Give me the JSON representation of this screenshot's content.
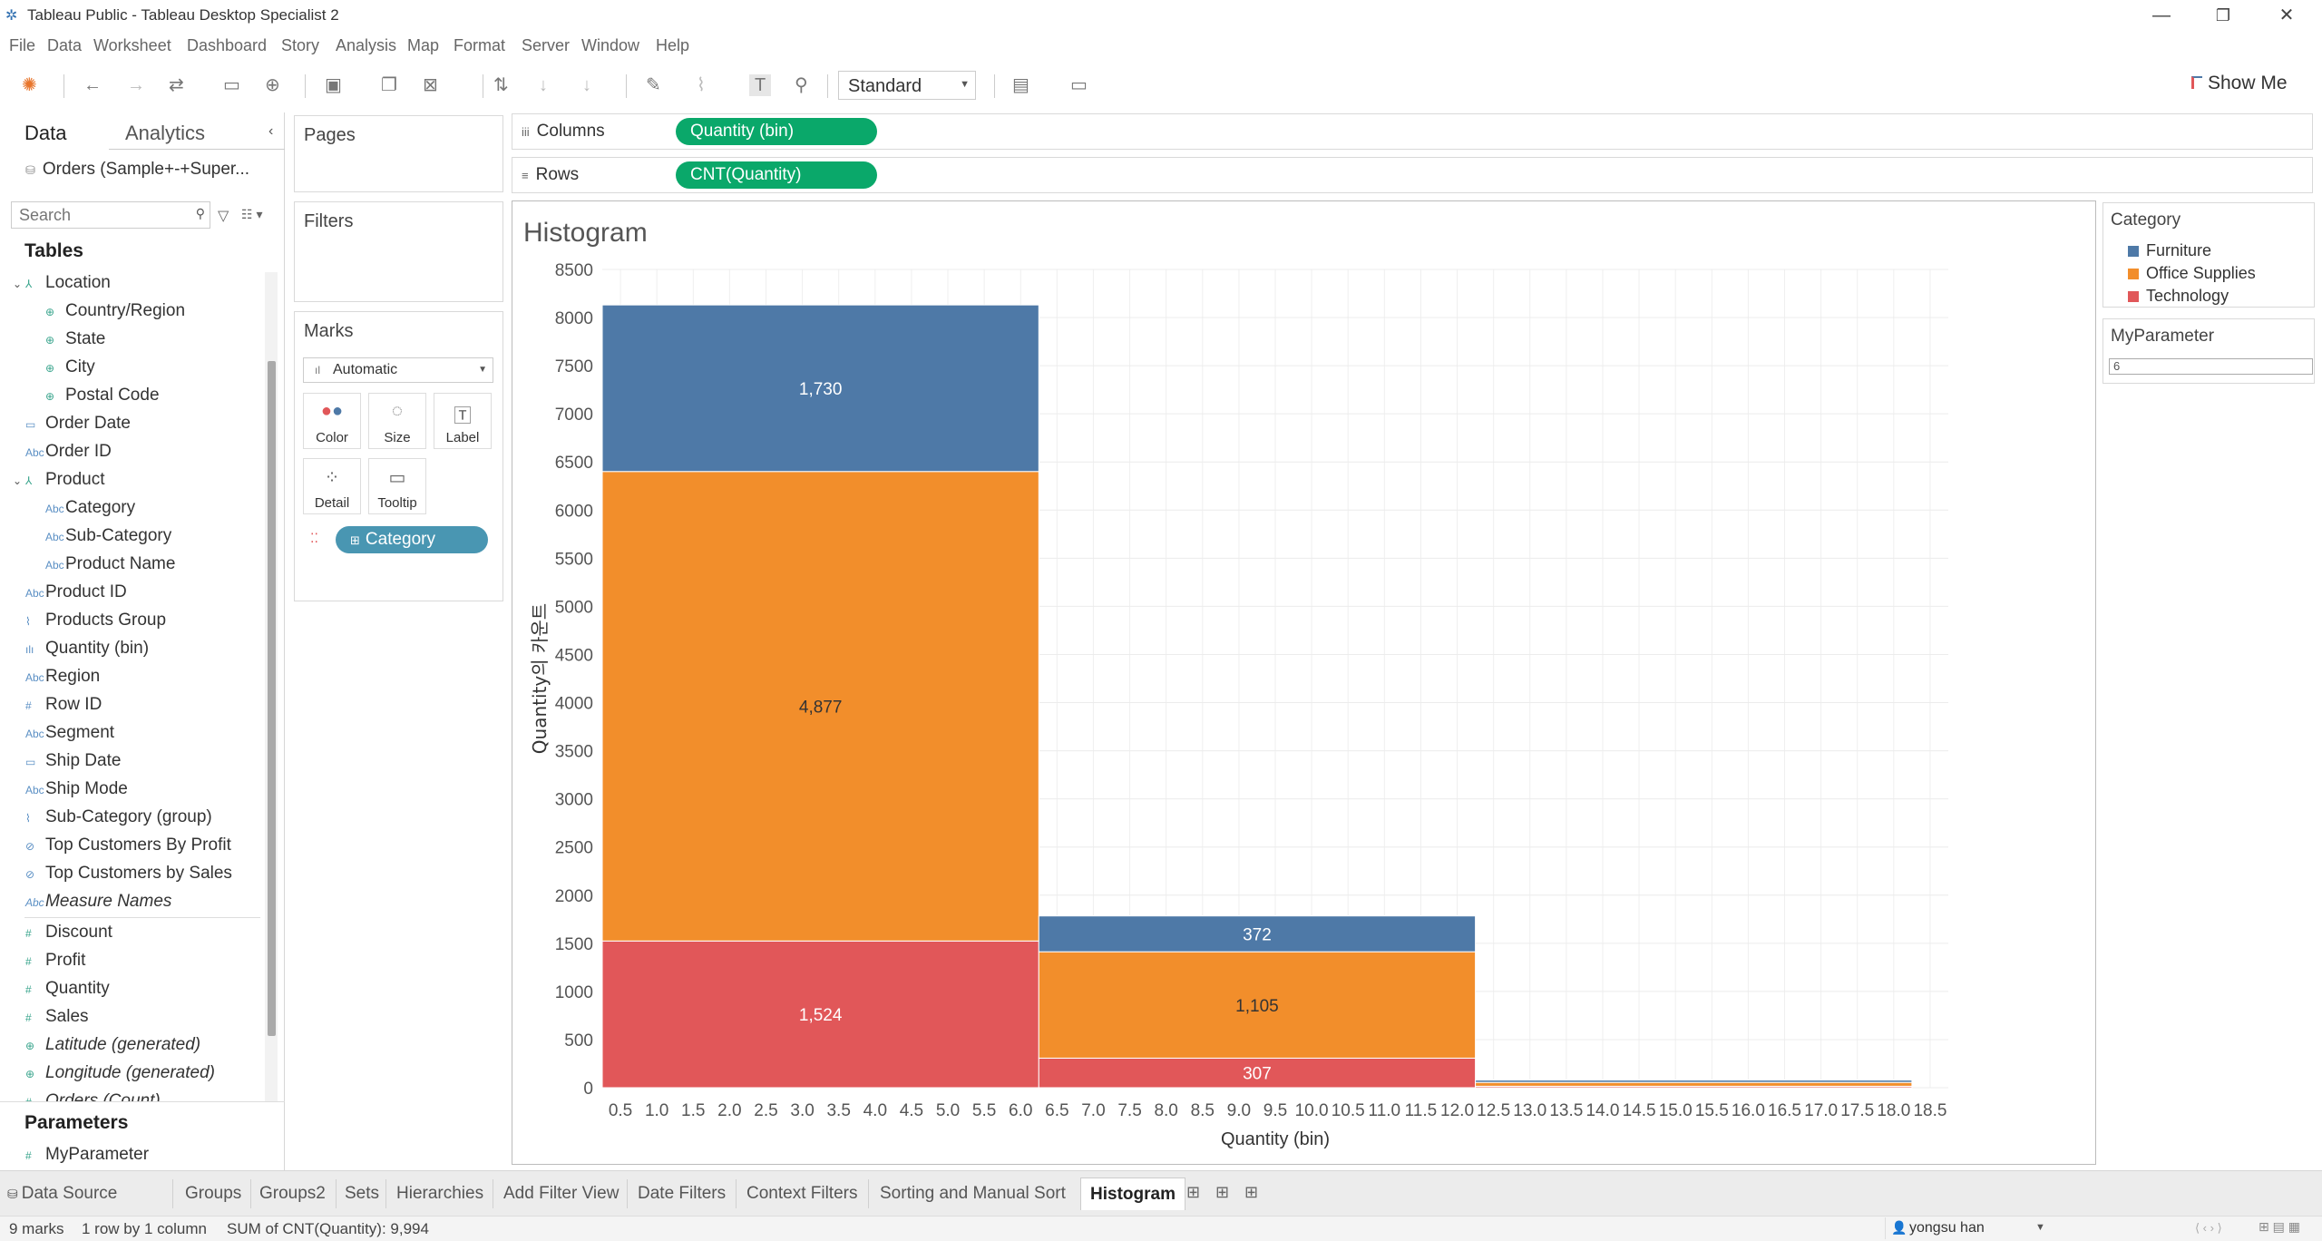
{
  "window": {
    "title": "Tableau Public - Tableau Desktop Specialist 2",
    "minimize": "—",
    "maximize": "❐",
    "close": "✕"
  },
  "menu": [
    "File",
    "Data",
    "Worksheet",
    "Dashboard",
    "Story",
    "Analysis",
    "Map",
    "Format",
    "Server",
    "Window",
    "Help"
  ],
  "toolbar": {
    "fit_select": "Standard",
    "show_me": "Show Me"
  },
  "data_pane": {
    "tab_data": "Data",
    "tab_analytics": "Analytics",
    "datasource": "Orders (Sample+-+Super...",
    "search_placeholder": "Search",
    "tables_heading": "Tables",
    "fields": [
      {
        "label": "Location",
        "kind": "hier"
      },
      {
        "label": "Country/Region",
        "kind": "geo"
      },
      {
        "label": "State",
        "kind": "geo"
      },
      {
        "label": "City",
        "kind": "geo"
      },
      {
        "label": "Postal Code",
        "kind": "geo"
      },
      {
        "label": "Order Date",
        "kind": "date"
      },
      {
        "label": "Order ID",
        "kind": "abc"
      },
      {
        "label": "Product",
        "kind": "hier"
      },
      {
        "label": "Category",
        "kind": "abc"
      },
      {
        "label": "Sub-Category",
        "kind": "abc"
      },
      {
        "label": "Product Name",
        "kind": "abc"
      },
      {
        "label": "Product ID",
        "kind": "abc"
      },
      {
        "label": "Products Group",
        "kind": "group"
      },
      {
        "label": "Quantity (bin)",
        "kind": "bin"
      },
      {
        "label": "Region",
        "kind": "abc"
      },
      {
        "label": "Row ID",
        "kind": "num"
      },
      {
        "label": "Segment",
        "kind": "abc"
      },
      {
        "label": "Ship Date",
        "kind": "date"
      },
      {
        "label": "Ship Mode",
        "kind": "abc"
      },
      {
        "label": "Sub-Category (group)",
        "kind": "group"
      },
      {
        "label": "Top Customers By Profit",
        "kind": "set"
      },
      {
        "label": "Top Customers by Sales",
        "kind": "set"
      },
      {
        "label": "Measure Names",
        "kind": "abc"
      },
      {
        "label": "Discount",
        "kind": "num"
      },
      {
        "label": "Profit",
        "kind": "num"
      },
      {
        "label": "Quantity",
        "kind": "num"
      },
      {
        "label": "Sales",
        "kind": "num"
      },
      {
        "label": "Latitude (generated)",
        "kind": "geo"
      },
      {
        "label": "Longitude (generated)",
        "kind": "geo"
      },
      {
        "label": "Orders (Count)",
        "kind": "num"
      }
    ],
    "parameters_heading": "Parameters",
    "parameters": [
      "MyParameter"
    ]
  },
  "cards": {
    "pages": "Pages",
    "filters": "Filters",
    "marks": "Marks",
    "mark_type": "Automatic",
    "mark_buttons": [
      "Color",
      "Size",
      "Label",
      "Detail",
      "Tooltip"
    ],
    "marks_pill": "Category"
  },
  "shelves": {
    "columns_label": "Columns",
    "columns_pill": "Quantity (bin)",
    "rows_label": "Rows",
    "rows_pill": "CNT(Quantity)"
  },
  "legend": {
    "title": "Category",
    "items": [
      {
        "label": "Furniture",
        "color": "#4e79a7"
      },
      {
        "label": "Office Supplies",
        "color": "#f28e2b"
      },
      {
        "label": "Technology",
        "color": "#e15759"
      }
    ],
    "param_title": "MyParameter",
    "param_value": "6"
  },
  "chart_data": {
    "type": "bar",
    "title": "Histogram",
    "xlabel": "Quantity (bin)",
    "ylabel": "Quantity의 카운트",
    "x_ticks": [
      "0.5",
      "1.0",
      "1.5",
      "2.0",
      "2.5",
      "3.0",
      "3.5",
      "4.0",
      "4.5",
      "5.0",
      "5.5",
      "6.0",
      "6.5",
      "7.0",
      "7.5",
      "8.0",
      "8.5",
      "9.0",
      "9.5",
      "10.0",
      "10.5",
      "11.0",
      "11.5",
      "12.0",
      "12.5",
      "13.0",
      "13.5",
      "14.0",
      "14.5",
      "15.0",
      "15.5",
      "16.0",
      "16.5",
      "17.0",
      "17.5",
      "18.0",
      "18.5"
    ],
    "y_ticks": [
      0,
      500,
      1000,
      1500,
      2000,
      2500,
      3000,
      3500,
      4000,
      4500,
      5000,
      5500,
      6000,
      6500,
      7000,
      7500,
      8000,
      8500
    ],
    "xlim": [
      0.25,
      18.75
    ],
    "ylim": [
      0,
      8500
    ],
    "bins": [
      {
        "x0": 0,
        "x1": 6,
        "stack": [
          {
            "category": "Technology",
            "value": 1524,
            "label": "1,524"
          },
          {
            "category": "Office Supplies",
            "value": 4877,
            "label": "4,877"
          },
          {
            "category": "Furniture",
            "value": 1730,
            "label": "1,730"
          }
        ]
      },
      {
        "x0": 6,
        "x1": 12,
        "stack": [
          {
            "category": "Technology",
            "value": 307,
            "label": "307"
          },
          {
            "category": "Office Supplies",
            "value": 1105,
            "label": "1,105"
          },
          {
            "category": "Furniture",
            "value": 372,
            "label": "372"
          }
        ]
      },
      {
        "x0": 12,
        "x1": 18,
        "stack": [
          {
            "category": "Technology",
            "value": 15,
            "label": ""
          },
          {
            "category": "Office Supplies",
            "value": 40,
            "label": ""
          },
          {
            "category": "Furniture",
            "value": 24,
            "label": ""
          }
        ]
      }
    ],
    "colors": {
      "Furniture": "#4e79a7",
      "Office Supplies": "#f28e2b",
      "Technology": "#e15759"
    },
    "grid": true,
    "legend": "right"
  },
  "sheet_tabs": {
    "data_source": "Data Source",
    "tabs": [
      "Groups",
      "Groups2",
      "Sets",
      "Hierarchies",
      "Add Filter View",
      "Date Filters",
      "Context Filters",
      "Sorting and Manual Sort",
      "Histogram"
    ],
    "active": "Histogram"
  },
  "status": {
    "marks": "9 marks",
    "dims": "1 row by 1 column",
    "sum": "SUM of CNT(Quantity): 9,994",
    "user": "yongsu han"
  }
}
